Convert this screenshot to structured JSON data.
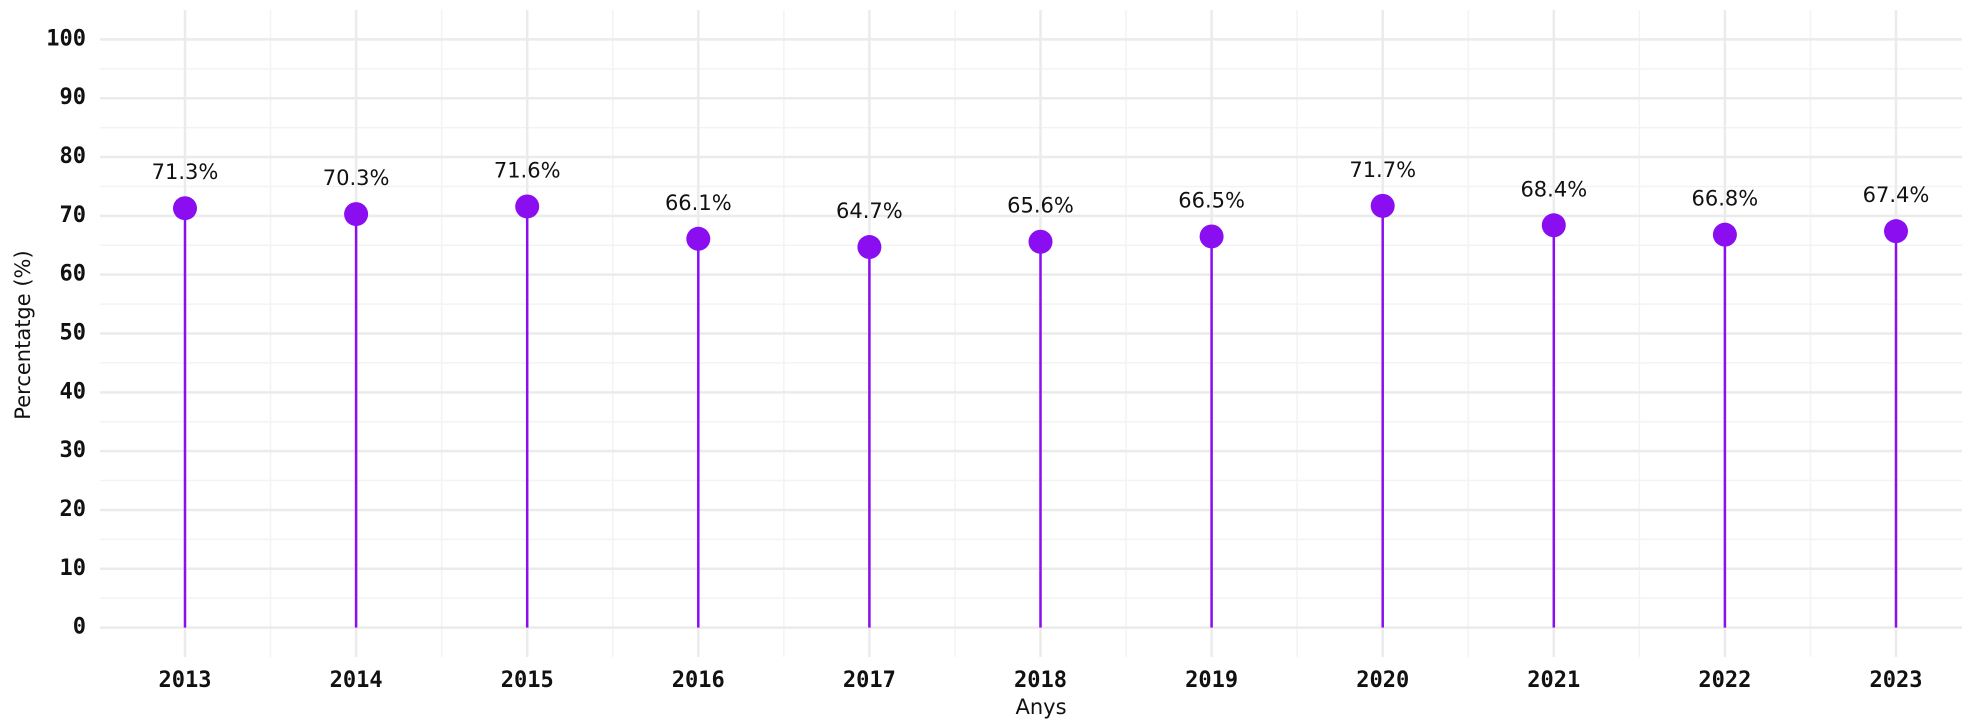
{
  "chart_data": {
    "type": "lollipop",
    "x_label": "Anys",
    "y_label": "Percentatge (%)",
    "categories": [
      "2013",
      "2014",
      "2015",
      "2016",
      "2017",
      "2018",
      "2019",
      "2020",
      "2021",
      "2022",
      "2023"
    ],
    "values": [
      71.3,
      70.3,
      71.6,
      66.1,
      64.7,
      65.6,
      66.5,
      71.7,
      68.4,
      66.8,
      67.4
    ],
    "value_labels": [
      "71.3%",
      "70.3%",
      "71.6%",
      "66.1%",
      "64.7%",
      "65.6%",
      "66.5%",
      "71.7%",
      "68.4%",
      "66.8%",
      "67.4%"
    ],
    "color": "#8a0ef0",
    "ylim": [
      -5,
      105
    ],
    "yticks": [
      0,
      10,
      20,
      30,
      40,
      50,
      60,
      70,
      80,
      90,
      100
    ],
    "minor_yticks": [
      5,
      15,
      25,
      35,
      45,
      55,
      65,
      75,
      85,
      95
    ],
    "grid": true
  }
}
